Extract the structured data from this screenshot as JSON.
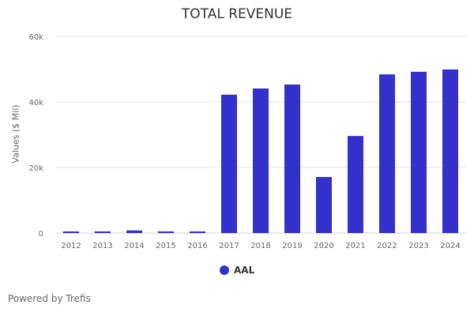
{
  "chart_data": {
    "type": "bar",
    "title": "TOTAL REVENUE",
    "xlabel": "",
    "ylabel": "Values ($ Mil)",
    "categories": [
      "2012",
      "2013",
      "2014",
      "2015",
      "2016",
      "2017",
      "2018",
      "2019",
      "2020",
      "2021",
      "2022",
      "2023",
      "2024"
    ],
    "series": [
      {
        "name": "AAL",
        "color": "#3330cc",
        "values": [
          500,
          500,
          800,
          500,
          500,
          42200,
          44100,
          45300,
          17100,
          29600,
          48400,
          49200,
          49900
        ]
      }
    ],
    "ylim": [
      0,
      60000
    ],
    "yticks": [
      0,
      20000,
      40000,
      60000
    ],
    "ytick_labels": [
      "0",
      "20k",
      "40k",
      "60k"
    ],
    "grid": true,
    "legend": "bottom-center"
  },
  "footer": {
    "credit": "Powered by Trefis"
  }
}
